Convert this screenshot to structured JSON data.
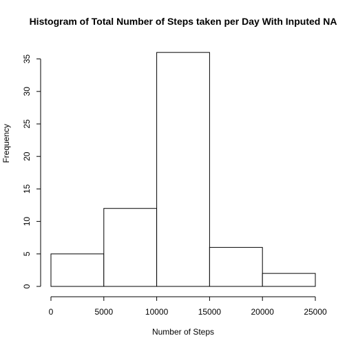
{
  "chart_data": {
    "type": "bar",
    "title": "Histogram of Total Number of Steps taken per Day With Inputed NA",
    "xlabel": "Number of Steps",
    "ylabel": "Frequency",
    "bins": [
      {
        "from": 0,
        "to": 5000,
        "count": 5
      },
      {
        "from": 5000,
        "to": 10000,
        "count": 12
      },
      {
        "from": 10000,
        "to": 15000,
        "count": 36
      },
      {
        "from": 15000,
        "to": 20000,
        "count": 6
      },
      {
        "from": 20000,
        "to": 25000,
        "count": 2
      }
    ],
    "xlim": [
      0,
      25000
    ],
    "ylim": [
      0,
      36
    ],
    "xticks": [
      0,
      5000,
      10000,
      15000,
      20000,
      25000
    ],
    "yticks": [
      0,
      5,
      10,
      15,
      20,
      25,
      30,
      35
    ],
    "grid": false,
    "legend": "none"
  }
}
